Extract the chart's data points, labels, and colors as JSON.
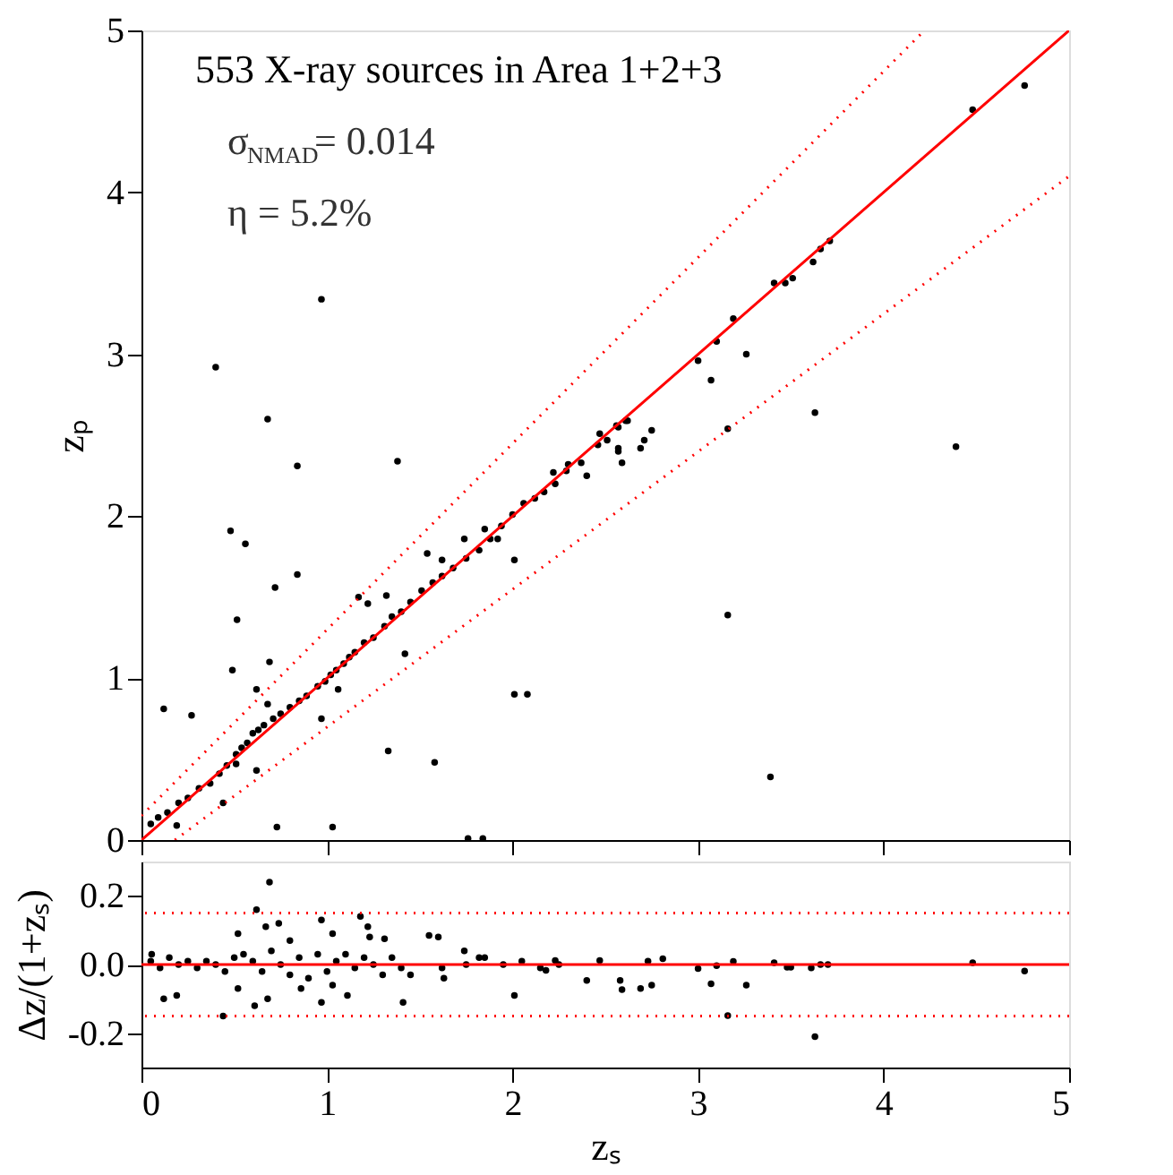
{
  "chart_data": [
    {
      "type": "scatter",
      "ylabel": "zₚ",
      "xlim": [
        0,
        5
      ],
      "ylim": [
        0,
        5
      ],
      "xticks": [
        0,
        1,
        2,
        3,
        4,
        5
      ],
      "yticks": [
        0,
        1,
        2,
        3,
        4,
        5
      ],
      "tick_labels": "y",
      "annotations": [
        "553  X-ray sources in Area 1+2+3",
        "σ$_{NMAD}$=   0.014",
        "η      =   5.2%"
      ],
      "series": [
        {
          "marker": "circle",
          "color": "#000000",
          "x": [
            0.97,
            0.4,
            0.68,
            0.84,
            1.38,
            0.48,
            0.56,
            0.84,
            0.72,
            0.515,
            0.49,
            0.69,
            0.12,
            0.27,
            1.33,
            1.58,
            2.01,
            2.08,
            2.01,
            0.73,
            1.03,
            1.76,
            1.84,
            0.44,
            0.19,
            4.39,
            3.16,
            3.39,
            3.16,
            2.59,
            2.4,
            2.75,
            4.76,
            4.48,
            3.63,
            3.26,
            3.07,
            3.19,
            3.41,
            3.47,
            3.51,
            3.62,
            3.66,
            3.71,
            3.1,
            3.0,
            0.05,
            0.09,
            0.14,
            0.2,
            0.25,
            0.31,
            0.37,
            0.42,
            0.46,
            0.51,
            0.54,
            0.57,
            0.6,
            0.63,
            0.66,
            0.71,
            0.75,
            0.8,
            0.85,
            0.89,
            0.95,
            0.99,
            1.02,
            1.05,
            1.09,
            1.12,
            1.15,
            1.2,
            1.25,
            1.31,
            1.35,
            1.4,
            1.45,
            1.51,
            1.57,
            1.62,
            1.68,
            1.75,
            1.82,
            1.88,
            1.94,
            2.0,
            2.06,
            2.12,
            2.17,
            2.23,
            2.29,
            2.37,
            2.46,
            2.51,
            2.57,
            2.62,
            0.51,
            0.62,
            0.97,
            0.68,
            0.62,
            1.17,
            1.22,
            1.32,
            1.42,
            1.06,
            1.54,
            1.62,
            1.74,
            1.85,
            1.92,
            2.57,
            2.22,
            2.3,
            2.47,
            2.56,
            2.61,
            2.69,
            2.71,
            2.57
          ],
          "values": [
            3.34,
            2.92,
            2.6,
            2.31,
            2.34,
            1.91,
            1.83,
            1.64,
            1.56,
            1.36,
            1.05,
            1.1,
            0.81,
            0.77,
            0.55,
            0.48,
            0.9,
            0.9,
            1.73,
            0.08,
            0.08,
            0.01,
            0.01,
            0.23,
            0.09,
            2.43,
            1.39,
            0.39,
            2.54,
            2.33,
            2.25,
            2.53,
            4.66,
            4.51,
            2.64,
            3.0,
            2.84,
            3.22,
            3.44,
            3.44,
            3.47,
            3.57,
            3.65,
            3.7,
            3.08,
            2.96,
            0.1,
            0.14,
            0.17,
            0.23,
            0.26,
            0.32,
            0.35,
            0.41,
            0.46,
            0.53,
            0.57,
            0.6,
            0.66,
            0.68,
            0.71,
            0.75,
            0.78,
            0.82,
            0.86,
            0.89,
            0.95,
            0.98,
            1.02,
            1.05,
            1.09,
            1.13,
            1.16,
            1.22,
            1.25,
            1.32,
            1.38,
            1.41,
            1.47,
            1.54,
            1.59,
            1.63,
            1.68,
            1.74,
            1.79,
            1.86,
            1.94,
            2.01,
            2.08,
            2.11,
            2.15,
            2.2,
            2.28,
            2.33,
            2.44,
            2.47,
            2.55,
            2.59,
            0.47,
            0.43,
            0.75,
            0.84,
            0.93,
            1.5,
            1.46,
            1.51,
            1.15,
            0.93,
            1.77,
            1.73,
            1.86,
            1.92,
            1.86,
            2.42,
            2.27,
            2.32,
            2.51,
            2.56,
            2.59,
            2.42,
            2.47,
            2.4
          ]
        },
        {
          "type": "line",
          "color": "#ff0000",
          "line_style": "solid",
          "x": [
            0,
            5
          ],
          "values": [
            0,
            5
          ]
        },
        {
          "type": "line",
          "color": "#ff0000",
          "line_style": "dotted",
          "x": [
            0,
            4.22
          ],
          "values": [
            0.15,
            5.0
          ]
        },
        {
          "type": "line",
          "color": "#ff0000",
          "line_style": "dotted",
          "x": [
            0.18,
            5
          ],
          "values": [
            0.0,
            4.1
          ]
        }
      ]
    },
    {
      "type": "scatter",
      "xlabel": "zₛ",
      "ylabel": "Δz/(1+zₛ)",
      "xlim": [
        0,
        5
      ],
      "ylim": [
        -0.3,
        0.3
      ],
      "xticks": [
        0,
        1,
        2,
        3,
        4,
        5
      ],
      "yticks": [
        -0.2,
        {
          "value": 0,
          "label": "0.0"
        },
        0.2
      ],
      "ref_lines": [
        {
          "axis": "y",
          "value": 0,
          "color": "#ff0000",
          "line_style": "solid"
        },
        {
          "axis": "y",
          "value": 0.15,
          "color": "#ff0000",
          "line_style": "dotted"
        },
        {
          "axis": "y",
          "value": -0.15,
          "color": "#ff0000",
          "line_style": "dotted"
        }
      ],
      "series": [
        {
          "marker": "circle",
          "color": "#000000",
          "x": [
            0.69,
            0.62,
            1.18,
            0.97,
            1.22,
            0.52,
            0.74,
            0.67,
            1.03,
            1.23,
            0.8,
            1.31,
            1.55,
            1.6,
            1.74,
            1.82,
            0.055,
            0.12,
            0.19,
            0.44,
            0.61,
            0.68,
            0.52,
            0.97,
            1.11,
            1.41,
            2.01,
            0.86,
            1.03,
            1.63,
            1.3,
            0.05,
            0.1,
            0.15,
            0.2,
            0.25,
            0.3,
            0.35,
            0.4,
            0.45,
            0.5,
            0.55,
            0.6,
            0.65,
            0.7,
            0.75,
            0.8,
            0.85,
            0.9,
            0.95,
            1.0,
            1.05,
            1.1,
            1.15,
            1.2,
            1.25,
            1.35,
            1.4,
            1.45,
            1.62,
            1.75,
            1.85,
            1.95,
            2.05,
            2.15,
            2.25,
            2.23,
            2.18,
            2.4,
            2.47,
            2.58,
            2.59,
            2.69,
            2.75,
            2.81,
            2.73,
            3.0,
            3.07,
            3.1,
            3.16,
            3.19,
            3.26,
            3.41,
            3.48,
            3.5,
            3.61,
            3.63,
            3.66,
            3.7,
            4.48,
            4.76
          ],
          "values": [
            0.24,
            0.16,
            0.14,
            0.13,
            0.11,
            0.09,
            0.12,
            0.11,
            0.09,
            0.08,
            0.07,
            0.075,
            0.085,
            0.08,
            0.04,
            0.02,
            0.03,
            -0.1,
            -0.09,
            -0.15,
            -0.12,
            -0.1,
            -0.07,
            -0.11,
            -0.09,
            -0.11,
            -0.09,
            -0.07,
            -0.06,
            -0.04,
            -0.03,
            0.01,
            -0.01,
            0.02,
            0.0,
            0.01,
            -0.01,
            0.01,
            0.0,
            -0.02,
            0.02,
            0.03,
            0.01,
            -0.02,
            0.04,
            0.0,
            -0.03,
            0.02,
            -0.04,
            0.03,
            -0.02,
            0.01,
            0.03,
            -0.01,
            0.02,
            0.0,
            0.02,
            -0.01,
            -0.03,
            -0.01,
            0.0,
            0.02,
            0.0,
            0.01,
            -0.01,
            0.0,
            0.012,
            -0.017,
            -0.046,
            0.012,
            -0.046,
            -0.073,
            -0.07,
            -0.06,
            0.017,
            0.01,
            -0.012,
            -0.056,
            -0.003,
            -0.149,
            0.009,
            -0.06,
            0.005,
            -0.008,
            -0.008,
            -0.01,
            -0.21,
            0.0,
            0.0,
            0.005,
            -0.019
          ]
        }
      ]
    }
  ]
}
